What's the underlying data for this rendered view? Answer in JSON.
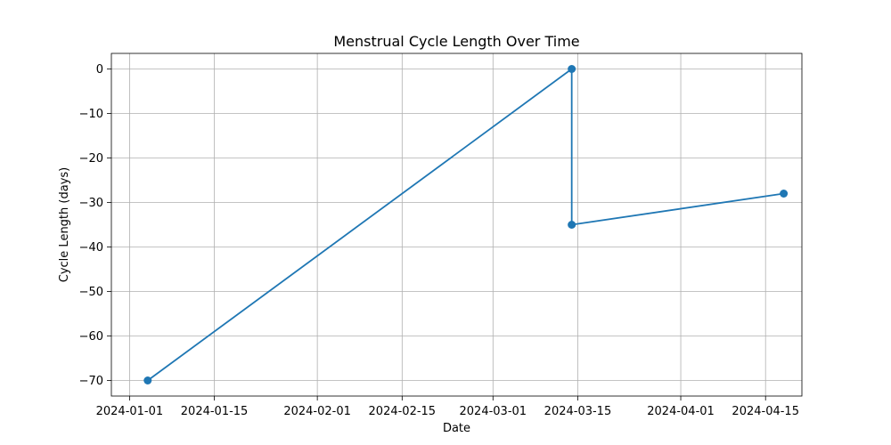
{
  "chart_data": {
    "type": "line",
    "title": "Menstrual Cycle Length Over Time",
    "xlabel": "Date",
    "ylabel": "Cycle Length (days)",
    "grid": true,
    "x_is_date": true,
    "xlim": [
      "2023-12-29",
      "2024-04-21"
    ],
    "ylim": [
      -73.5,
      3.5
    ],
    "xticks": [
      "2024-01-01",
      "2024-01-15",
      "2024-02-01",
      "2024-02-15",
      "2024-03-01",
      "2024-03-15",
      "2024-04-01",
      "2024-04-15"
    ],
    "yticks": [
      0,
      -10,
      -20,
      -30,
      -40,
      -50,
      -60,
      -70
    ],
    "series": [
      {
        "color": "#1f77b4",
        "marker": "circle",
        "points": [
          {
            "x": "2024-01-04",
            "y": -70
          },
          {
            "x": "2024-03-14",
            "y": 0
          },
          {
            "x": "2024-03-14",
            "y": -35
          },
          {
            "x": "2024-04-18",
            "y": -28
          }
        ]
      }
    ]
  }
}
